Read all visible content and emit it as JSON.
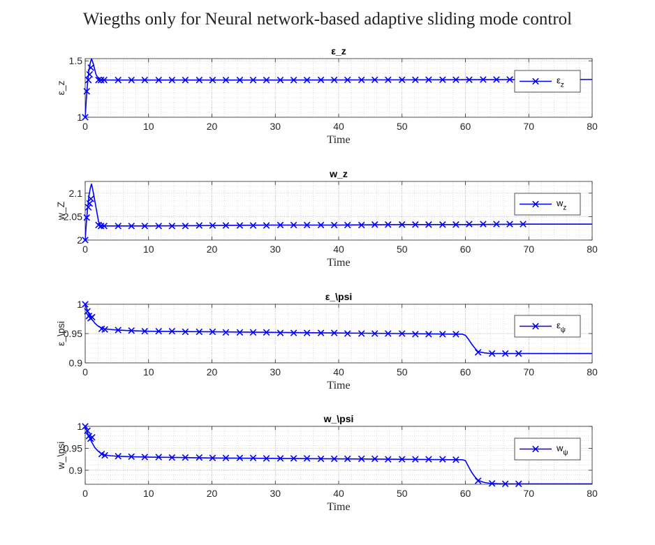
{
  "figure_title": "Wiegths only for Neural network-based adaptive sliding mode control",
  "chart_data": [
    {
      "type": "line",
      "title": "ε_z",
      "xlabel": "Time",
      "ylabel": "ε_z",
      "xlim": [
        0,
        80
      ],
      "ylim": [
        1,
        1.52
      ],
      "xticks": [
        "0",
        "10",
        "20",
        "30",
        "40",
        "50",
        "60",
        "70",
        "80"
      ],
      "yticks": [
        {
          "v": 1,
          "label": "1"
        },
        {
          "v": 1.5,
          "label": "1.5"
        }
      ],
      "grid": true,
      "legend": {
        "main": "ε",
        "sub": "z",
        "position": "right"
      },
      "color": "#0000ff",
      "series": [
        {
          "x": [
            0,
            0.2,
            0.4,
            0.6,
            0.8,
            1.0,
            1.3,
            1.7,
            2.2,
            2.6,
            3,
            5,
            10,
            20,
            30,
            40,
            50,
            60,
            70,
            80
          ],
          "y": [
            1.0,
            1.18,
            1.32,
            1.42,
            1.48,
            1.52,
            1.47,
            1.38,
            1.33,
            1.33,
            1.33,
            1.33,
            1.33,
            1.33,
            1.33,
            1.331,
            1.332,
            1.333,
            1.334,
            1.335
          ]
        }
      ],
      "markers": {
        "x": [
          0,
          0.25,
          0.5,
          0.7,
          0.9,
          2.1,
          2.5,
          3.0,
          5.2,
          7.3,
          9.4,
          11.6,
          13.7,
          15.8,
          18.0,
          20.1,
          22.2,
          24.4,
          26.5,
          28.6,
          30.8,
          32.9,
          35.0,
          37.2,
          39.3,
          41.4,
          43.6,
          45.7,
          47.8,
          50.0,
          52.1,
          54.2,
          56.4,
          58.5,
          60.6,
          62.8,
          64.9,
          67.0
        ],
        "y": [
          1.0,
          1.23,
          1.33,
          1.38,
          1.44,
          1.33,
          1.33,
          1.33,
          1.33,
          1.33,
          1.33,
          1.33,
          1.33,
          1.33,
          1.33,
          1.33,
          1.33,
          1.33,
          1.33,
          1.33,
          1.33,
          1.33,
          1.33,
          1.331,
          1.331,
          1.331,
          1.331,
          1.332,
          1.332,
          1.332,
          1.332,
          1.333,
          1.333,
          1.333,
          1.333,
          1.334,
          1.334,
          1.334
        ]
      }
    },
    {
      "type": "line",
      "title": "w_z",
      "xlabel": "Time",
      "ylabel": "w_Z",
      "xlim": [
        0,
        80
      ],
      "ylim": [
        2,
        2.125
      ],
      "xticks": [
        "0",
        "10",
        "20",
        "30",
        "40",
        "50",
        "60",
        "70",
        "80"
      ],
      "yticks": [
        {
          "v": 2,
          "label": "2"
        },
        {
          "v": 2.05,
          "label": "2.05"
        },
        {
          "v": 2.1,
          "label": "2.1"
        }
      ],
      "grid": true,
      "legend": {
        "main": "w",
        "sub": "z",
        "position": "right"
      },
      "color": "#0000ff",
      "series": [
        {
          "x": [
            0,
            0.2,
            0.4,
            0.6,
            0.8,
            1.0,
            1.3,
            1.7,
            2.1,
            2.5,
            3,
            5,
            10,
            20,
            30,
            40,
            50,
            60,
            70,
            80
          ],
          "y": [
            2.0,
            2.04,
            2.07,
            2.095,
            2.11,
            2.12,
            2.1,
            2.07,
            2.04,
            2.03,
            2.03,
            2.03,
            2.03,
            2.031,
            2.032,
            2.032,
            2.033,
            2.033,
            2.034,
            2.034
          ]
        }
      ],
      "markers": {
        "x": [
          0,
          0.25,
          0.5,
          0.7,
          0.9,
          2.1,
          2.5,
          3.0,
          5.2,
          7.3,
          9.4,
          11.6,
          13.7,
          15.8,
          18.0,
          20.1,
          22.2,
          24.4,
          26.5,
          28.6,
          30.8,
          32.9,
          35.0,
          37.2,
          39.3,
          41.4,
          43.6,
          45.7,
          47.8,
          50.0,
          52.1,
          54.2,
          56.4,
          58.5,
          60.6,
          62.8,
          64.9,
          67.0,
          69.1
        ],
        "y": [
          2.0,
          2.048,
          2.07,
          2.078,
          2.088,
          2.032,
          2.03,
          2.03,
          2.03,
          2.03,
          2.03,
          2.03,
          2.03,
          2.03,
          2.031,
          2.031,
          2.031,
          2.031,
          2.031,
          2.031,
          2.032,
          2.032,
          2.032,
          2.032,
          2.032,
          2.032,
          2.032,
          2.033,
          2.033,
          2.033,
          2.033,
          2.033,
          2.033,
          2.033,
          2.034,
          2.034,
          2.034,
          2.034,
          2.034
        ]
      }
    },
    {
      "type": "line",
      "title": "ε_\\psi",
      "xlabel": "Time",
      "ylabel": "ε_\\psi",
      "xlim": [
        0,
        80
      ],
      "ylim": [
        0.9,
        1.0
      ],
      "xticks": [
        "0",
        "10",
        "20",
        "30",
        "40",
        "50",
        "60",
        "70",
        "80"
      ],
      "yticks": [
        {
          "v": 0.9,
          "label": "0.9"
        },
        {
          "v": 0.95,
          "label": "0.95"
        },
        {
          "v": 1.0,
          "label": "1"
        }
      ],
      "grid": true,
      "legend": {
        "main": "ε",
        "sub": "ψ",
        "position": "right"
      },
      "color": "#0000ff",
      "series": [
        {
          "x": [
            0,
            0.5,
            1,
            1.5,
            2,
            2.5,
            3,
            4,
            5,
            7,
            10,
            20,
            30,
            40,
            50,
            58,
            59.5,
            60,
            60.5,
            61,
            61.5,
            62,
            63,
            64,
            66,
            70,
            80
          ],
          "y": [
            1.0,
            0.985,
            0.975,
            0.968,
            0.963,
            0.96,
            0.958,
            0.957,
            0.956,
            0.955,
            0.954,
            0.953,
            0.952,
            0.951,
            0.95,
            0.949,
            0.949,
            0.947,
            0.94,
            0.932,
            0.925,
            0.919,
            0.917,
            0.916,
            0.916,
            0.916,
            0.916
          ]
        }
      ],
      "markers": {
        "x": [
          0,
          0.35,
          0.6,
          0.85,
          1.1,
          2.6,
          3.1,
          5.2,
          7.3,
          9.4,
          11.6,
          13.7,
          15.8,
          18.0,
          20.1,
          22.2,
          24.4,
          26.5,
          28.6,
          30.8,
          32.9,
          35.0,
          37.2,
          39.3,
          41.4,
          43.6,
          45.7,
          47.8,
          50.0,
          52.1,
          54.2,
          56.4,
          58.5,
          62.0,
          64.2,
          66.3,
          68.4
        ],
        "y": [
          1.0,
          0.988,
          0.98,
          0.976,
          0.978,
          0.958,
          0.957,
          0.956,
          0.955,
          0.954,
          0.954,
          0.954,
          0.953,
          0.953,
          0.953,
          0.952,
          0.952,
          0.952,
          0.952,
          0.951,
          0.951,
          0.951,
          0.951,
          0.951,
          0.95,
          0.95,
          0.95,
          0.95,
          0.95,
          0.949,
          0.949,
          0.949,
          0.949,
          0.918,
          0.916,
          0.916,
          0.916
        ]
      }
    },
    {
      "type": "line",
      "title": "w_\\psi",
      "xlabel": "Time",
      "ylabel": "w_\\psi",
      "xlim": [
        0,
        80
      ],
      "ylim": [
        0.868,
        1.0
      ],
      "xticks": [
        "0",
        "10",
        "20",
        "30",
        "40",
        "50",
        "60",
        "70",
        "80"
      ],
      "yticks": [
        {
          "v": 0.9,
          "label": "0.9"
        },
        {
          "v": 0.95,
          "label": "0.95"
        },
        {
          "v": 1.0,
          "label": "1"
        }
      ],
      "grid": true,
      "legend": {
        "main": "w",
        "sub": "ψ",
        "position": "right"
      },
      "color": "#0000ff",
      "series": [
        {
          "x": [
            0,
            0.5,
            1,
            1.5,
            2,
            2.5,
            3,
            4,
            5,
            7,
            10,
            20,
            30,
            40,
            50,
            58,
            59.5,
            60,
            60.5,
            61,
            61.5,
            62,
            63,
            64,
            66,
            70,
            80
          ],
          "y": [
            1.0,
            0.98,
            0.965,
            0.952,
            0.944,
            0.938,
            0.935,
            0.933,
            0.932,
            0.931,
            0.93,
            0.928,
            0.927,
            0.926,
            0.925,
            0.924,
            0.924,
            0.922,
            0.908,
            0.895,
            0.885,
            0.877,
            0.872,
            0.87,
            0.869,
            0.869,
            0.869
          ]
        }
      ],
      "markers": {
        "x": [
          0,
          0.35,
          0.6,
          0.85,
          1.1,
          2.6,
          3.1,
          5.2,
          7.3,
          9.4,
          11.6,
          13.7,
          15.8,
          18.0,
          20.1,
          22.2,
          24.4,
          26.5,
          28.6,
          30.8,
          32.9,
          35.0,
          37.2,
          39.3,
          41.4,
          43.6,
          45.7,
          47.8,
          50.0,
          52.1,
          54.2,
          56.4,
          58.5,
          62.0,
          64.2,
          66.3,
          68.4
        ],
        "y": [
          1.0,
          0.99,
          0.978,
          0.972,
          0.975,
          0.937,
          0.934,
          0.932,
          0.931,
          0.93,
          0.93,
          0.929,
          0.929,
          0.929,
          0.928,
          0.928,
          0.928,
          0.928,
          0.927,
          0.927,
          0.927,
          0.927,
          0.926,
          0.926,
          0.926,
          0.926,
          0.926,
          0.925,
          0.925,
          0.925,
          0.925,
          0.925,
          0.924,
          0.876,
          0.87,
          0.869,
          0.869
        ]
      }
    }
  ]
}
